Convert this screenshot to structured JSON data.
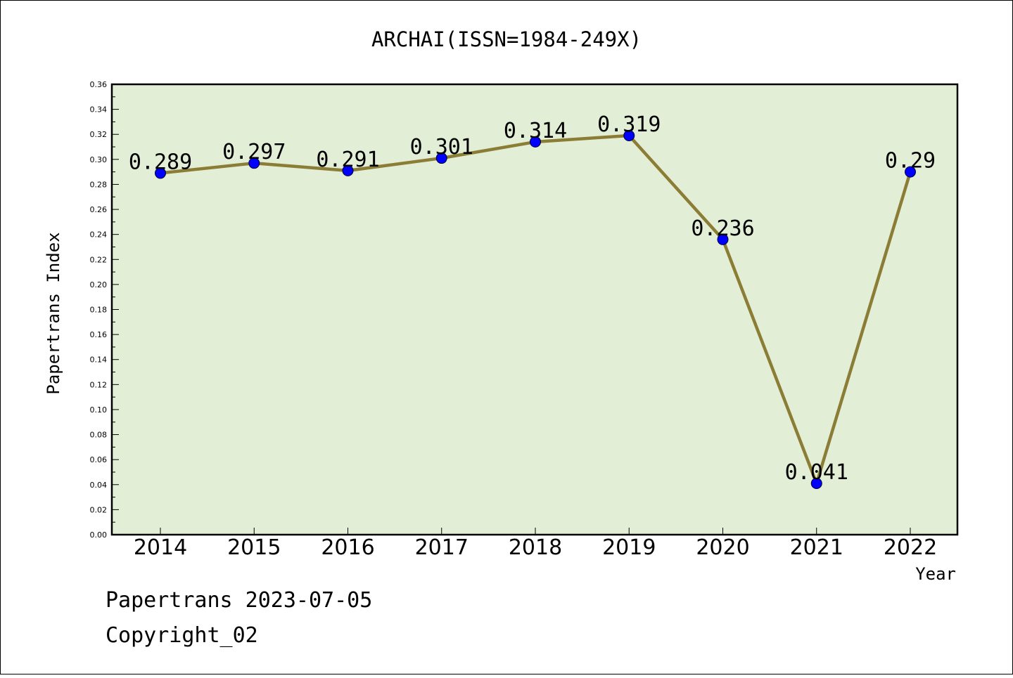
{
  "chart_data": {
    "type": "line",
    "title": "ARCHAI(ISSN=1984-249X)",
    "xlabel": "Year",
    "ylabel": "Papertrans Index",
    "categories": [
      "2014",
      "2015",
      "2016",
      "2017",
      "2018",
      "2019",
      "2020",
      "2021",
      "2022"
    ],
    "series": [
      {
        "values": [
          0.289,
          0.297,
          0.291,
          0.301,
          0.314,
          0.319,
          0.236,
          0.041,
          0.29
        ],
        "data_labels": [
          "0.289",
          "0.297",
          "0.291",
          "0.301",
          "0.314",
          "0.319",
          "0.236",
          "0.041",
          "0.29"
        ]
      }
    ],
    "ylim": [
      0,
      0.36
    ],
    "yticks": [
      "0.00",
      "0.02",
      "0.04",
      "0.06",
      "0.08",
      "0.10",
      "0.12",
      "0.14",
      "0.16",
      "0.18",
      "0.20",
      "0.22",
      "0.24",
      "0.26",
      "0.28",
      "0.30",
      "0.32",
      "0.34",
      "0.36"
    ],
    "grid": false,
    "colors": {
      "plot_background": "#e2efd6",
      "line": "#8b7d35",
      "marker": "#0000ff"
    }
  },
  "footer": {
    "line1": "Papertrans 2023-07-05",
    "line2": "Copyright_02"
  }
}
